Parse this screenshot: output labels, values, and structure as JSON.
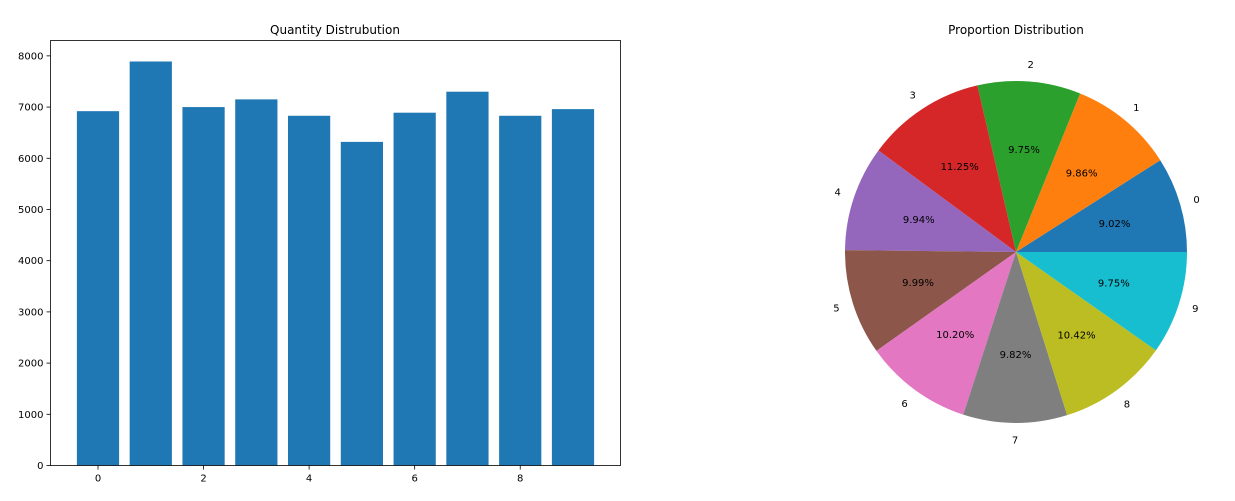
{
  "chart_data": [
    {
      "type": "bar",
      "title": "Quantity Distrubution",
      "xlabel": "",
      "ylabel": "",
      "categories": [
        0,
        1,
        2,
        3,
        4,
        5,
        6,
        7,
        8,
        9
      ],
      "values": [
        6920,
        7890,
        7000,
        7150,
        6830,
        6320,
        6890,
        7300,
        6830,
        6960
      ],
      "color": "#1f77b4",
      "xticks": [
        "0",
        "2",
        "4",
        "6",
        "8"
      ],
      "yticks": [
        "0",
        "1000",
        "2000",
        "3000",
        "4000",
        "5000",
        "6000",
        "7000",
        "8000"
      ],
      "ylim": [
        0,
        8300
      ],
      "grid": false
    },
    {
      "type": "pie",
      "title": "Proportion Distribution",
      "labels": [
        "0",
        "1",
        "2",
        "3",
        "4",
        "5",
        "6",
        "7",
        "8",
        "9"
      ],
      "values": [
        9.02,
        9.86,
        9.75,
        11.25,
        9.94,
        9.99,
        10.2,
        9.82,
        10.42,
        9.75
      ],
      "percent_labels": [
        "9.02%",
        "9.86%",
        "9.75%",
        "11.25%",
        "9.94%",
        "9.99%",
        "10.20%",
        "9.82%",
        "10.42%",
        "9.75%"
      ],
      "colors": [
        "#1f77b4",
        "#ff7f0e",
        "#2ca02c",
        "#d62728",
        "#9467bd",
        "#8c564b",
        "#e377c2",
        "#7f7f7f",
        "#bcbd22",
        "#17becf"
      ]
    }
  ]
}
